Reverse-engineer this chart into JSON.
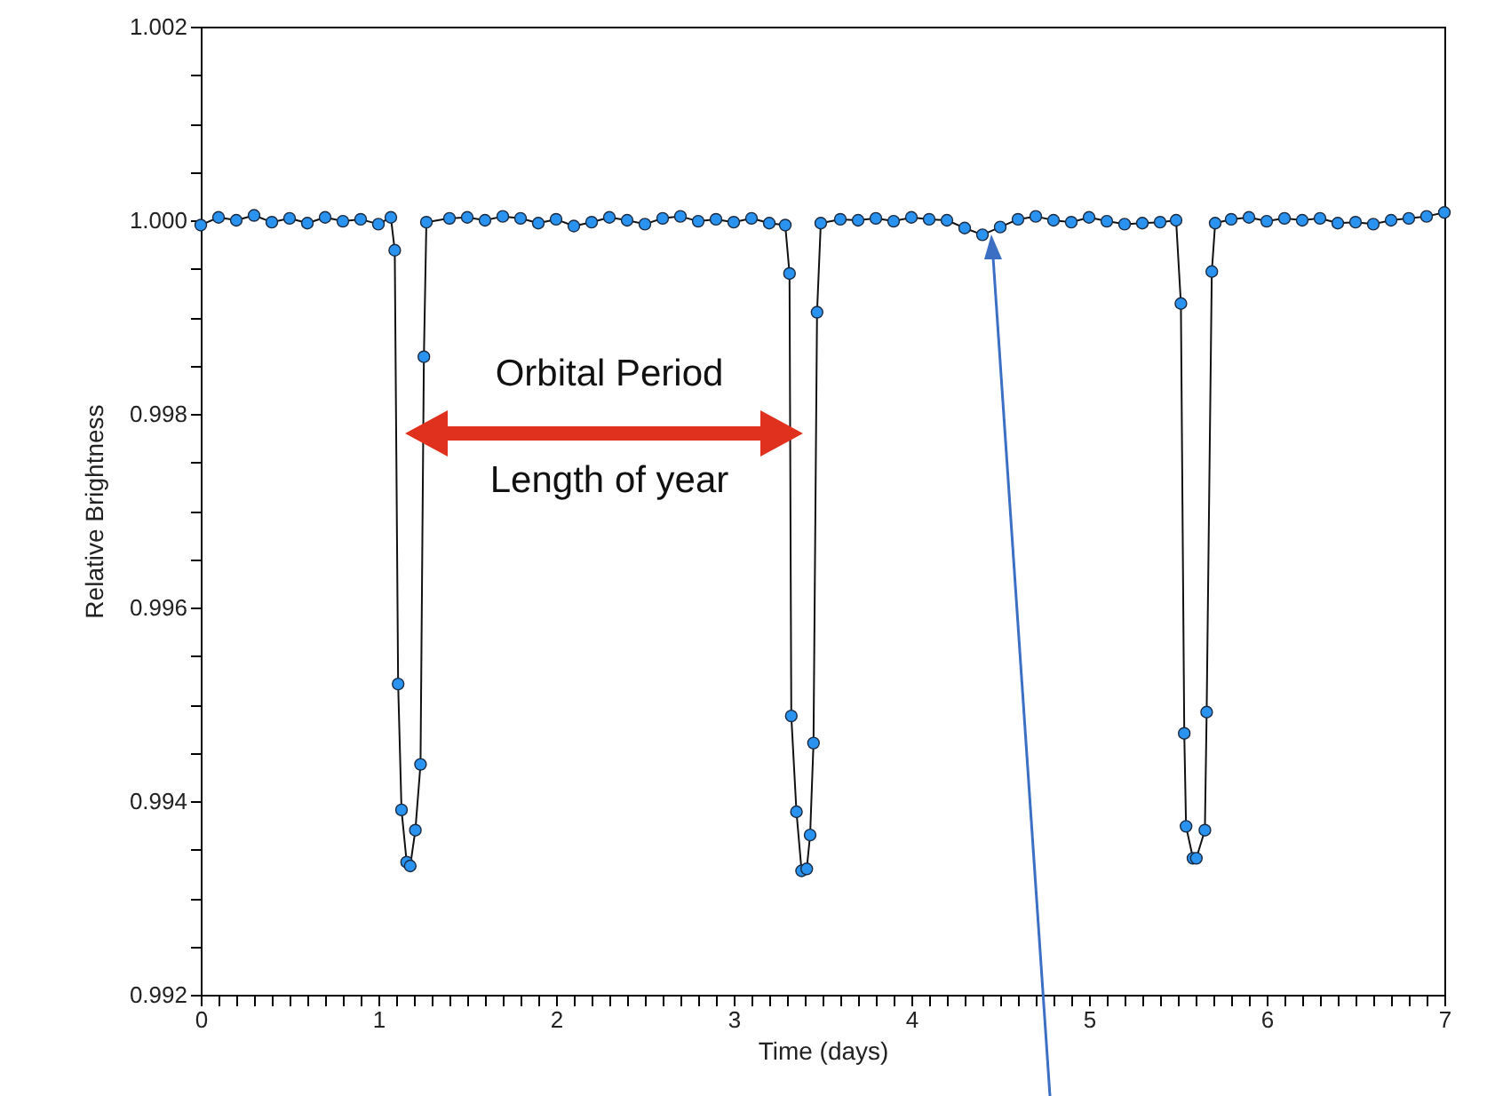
{
  "chart_data": {
    "type": "line",
    "xlabel": "Time (days)",
    "ylabel": "Relative Brightness",
    "annotations": [
      "Orbital Period",
      "Length of year"
    ],
    "series": [
      {
        "color": "#2a93f0",
        "x": [
          0,
          0.1,
          0.2,
          0.3,
          0.4,
          0.5,
          0.6,
          0.7,
          0.8,
          0.9,
          1.0,
          1.07,
          1.092,
          1.111,
          1.13,
          1.159,
          1.179,
          1.208,
          1.237,
          1.256,
          1.27,
          1.4,
          1.5,
          1.6,
          1.7,
          1.8,
          1.9,
          2.0,
          2.1,
          2.2,
          2.3,
          2.4,
          2.5,
          2.6,
          2.7,
          2.8,
          2.9,
          3.0,
          3.1,
          3.2,
          3.29,
          3.314,
          3.324,
          3.353,
          3.382,
          3.411,
          3.43,
          3.449,
          3.469,
          3.49,
          3.6,
          3.7,
          3.8,
          3.9,
          4.0,
          4.1,
          4.2,
          4.3,
          4.4,
          4.5,
          4.6,
          4.7,
          4.8,
          4.9,
          5.0,
          5.1,
          5.2,
          5.3,
          5.4,
          5.49,
          5.517,
          5.536,
          5.546,
          5.585,
          5.604,
          5.652,
          5.662,
          5.691,
          5.71,
          5.8,
          5.9,
          6.0,
          6.1,
          6.2,
          6.3,
          6.4,
          6.5,
          6.6,
          6.7,
          6.8,
          6.9,
          7.0
        ],
        "values": [
          0.99995,
          1.00003,
          1.0,
          1.00005,
          0.99998,
          1.00002,
          0.99997,
          1.00003,
          0.99999,
          1.00001,
          0.99996,
          1.00003,
          0.99969,
          0.99521,
          0.99391,
          0.99337,
          0.99333,
          0.9937,
          0.99438,
          0.99859,
          0.99998,
          1.00002,
          1.00003,
          1.0,
          1.00004,
          1.00002,
          0.99997,
          1.00001,
          0.99994,
          0.99998,
          1.00003,
          1.0,
          0.99996,
          1.00002,
          1.00004,
          0.99999,
          1.00001,
          0.99998,
          1.00002,
          0.99997,
          0.99995,
          0.99945,
          0.99488,
          0.99389,
          0.99328,
          0.9933,
          0.99365,
          0.9946,
          0.99905,
          0.99997,
          1.00001,
          1.0,
          1.00002,
          0.99999,
          1.00003,
          1.00001,
          1.0,
          0.99992,
          0.99985,
          0.99993,
          1.00001,
          1.00004,
          1.0,
          0.99998,
          1.00003,
          0.99999,
          0.99996,
          0.99997,
          0.99998,
          1.0,
          0.99914,
          0.9947,
          0.99374,
          0.99341,
          0.99341,
          0.9937,
          0.99492,
          0.99947,
          0.99997,
          1.00001,
          1.00003,
          0.99999,
          1.00002,
          1.0,
          1.00002,
          0.99997,
          0.99998,
          0.99996,
          1.0,
          1.00002,
          1.00004,
          1.00008
        ]
      }
    ],
    "xlim": [
      0,
      7
    ],
    "xticks": [
      0,
      {
        "value": 0.1,
        "label": null
      },
      {
        "value": 0.2,
        "label": null
      },
      {
        "value": 0.3,
        "label": null
      },
      {
        "value": 0.4,
        "label": null
      },
      {
        "value": 0.5,
        "label": null
      },
      {
        "value": 0.6,
        "label": null
      },
      {
        "value": 0.7,
        "label": null
      },
      {
        "value": 0.8,
        "label": null
      },
      {
        "value": 0.9,
        "label": null
      },
      1,
      {
        "value": 1.1,
        "label": null
      },
      {
        "value": 1.2,
        "label": null
      },
      {
        "value": 1.3,
        "label": null
      },
      {
        "value": 1.4,
        "label": null
      },
      {
        "value": 1.5,
        "label": null
      },
      {
        "value": 1.6,
        "label": null
      },
      {
        "value": 1.7,
        "label": null
      },
      {
        "value": 1.8,
        "label": null
      },
      {
        "value": 1.9,
        "label": null
      },
      2,
      {
        "value": 2.1,
        "label": null
      },
      {
        "value": 2.2,
        "label": null
      },
      {
        "value": 2.3,
        "label": null
      },
      {
        "value": 2.4,
        "label": null
      },
      {
        "value": 2.5,
        "label": null
      },
      {
        "value": 2.6,
        "label": null
      },
      {
        "value": 2.7,
        "label": null
      },
      {
        "value": 2.8,
        "label": null
      },
      {
        "value": 2.9,
        "label": null
      },
      3,
      {
        "value": 3.1,
        "label": null
      },
      {
        "value": 3.2,
        "label": null
      },
      {
        "value": 3.3,
        "label": null
      },
      {
        "value": 3.4,
        "label": null
      },
      {
        "value": 3.5,
        "label": null
      },
      {
        "value": 3.6,
        "label": null
      },
      {
        "value": 3.7,
        "label": null
      },
      {
        "value": 3.8,
        "label": null
      },
      {
        "value": 3.9,
        "label": null
      },
      4,
      {
        "value": 4.1,
        "label": null
      },
      {
        "value": 4.2,
        "label": null
      },
      {
        "value": 4.3,
        "label": null
      },
      {
        "value": 4.4,
        "label": null
      },
      {
        "value": 4.5,
        "label": null
      },
      {
        "value": 4.6,
        "label": null
      },
      {
        "value": 4.7,
        "label": null
      },
      {
        "value": 4.8,
        "label": null
      },
      {
        "value": 4.9,
        "label": null
      },
      5,
      {
        "value": 5.1,
        "label": null
      },
      {
        "value": 5.2,
        "label": null
      },
      {
        "value": 5.3,
        "label": null
      },
      {
        "value": 5.4,
        "label": null
      },
      {
        "value": 5.5,
        "label": null
      },
      {
        "value": 5.6,
        "label": null
      },
      {
        "value": 5.7,
        "label": null
      },
      {
        "value": 5.8,
        "label": null
      },
      {
        "value": 5.9,
        "label": null
      },
      6,
      {
        "value": 6.1,
        "label": null
      },
      {
        "value": 6.2,
        "label": null
      },
      {
        "value": 6.3,
        "label": null
      },
      {
        "value": 6.4,
        "label": null
      },
      {
        "value": 6.5,
        "label": null
      },
      {
        "value": 6.6,
        "label": null
      },
      {
        "value": 6.7,
        "label": null
      },
      {
        "value": 6.8,
        "label": null
      },
      {
        "value": 6.9,
        "label": null
      },
      7
    ],
    "ylim": [
      0.992,
      1.002
    ],
    "yticks": [
      0.992,
      {
        "value": 0.9925,
        "label": null
      },
      {
        "value": 0.993,
        "label": null
      },
      {
        "value": 0.9935,
        "label": null
      },
      0.994,
      {
        "value": 0.9945,
        "label": null
      },
      {
        "value": 0.995,
        "label": null
      },
      {
        "value": 0.9955,
        "label": null
      },
      0.996,
      {
        "value": 0.9965,
        "label": null
      },
      {
        "value": 0.997,
        "label": null
      },
      {
        "value": 0.9975,
        "label": null
      },
      0.998,
      {
        "value": 0.9985,
        "label": null
      },
      {
        "value": 0.999,
        "label": null
      },
      {
        "value": 0.9995,
        "label": null
      },
      {
        "value": 1.0,
        "label": "1.000"
      },
      {
        "value": 1.0005,
        "label": null
      },
      {
        "value": 1.001,
        "label": null
      },
      {
        "value": 1.0015,
        "label": null
      },
      1.002
    ],
    "marker": "circle",
    "grid": false
  }
}
